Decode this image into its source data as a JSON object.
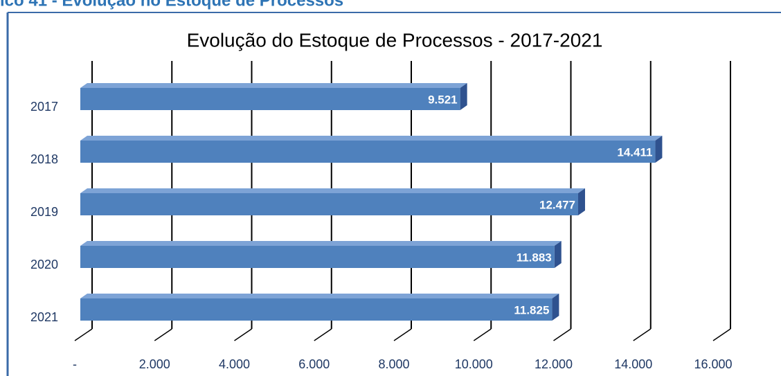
{
  "heading": "ico 41 - Evolução no Estoque de Processos",
  "chart_data": {
    "type": "bar",
    "orientation": "horizontal",
    "title": "Evolução do Estoque de Processos - 2017-2021",
    "categories": [
      "2017",
      "2018",
      "2019",
      "2020",
      "2021"
    ],
    "values": [
      9521,
      14411,
      12477,
      11883,
      11825
    ],
    "value_labels": [
      "9.521",
      "14.411",
      "12.477",
      "11.883",
      "11.825"
    ],
    "color": "#4f81bd",
    "xlim": [
      0,
      16000
    ],
    "xticks": [
      {
        "value": 0,
        "label": "-"
      },
      {
        "value": 2000,
        "label": "2.000"
      },
      {
        "value": 4000,
        "label": "4.000"
      },
      {
        "value": 6000,
        "label": "6.000"
      },
      {
        "value": 8000,
        "label": "8.000"
      },
      {
        "value": 10000,
        "label": "10.000"
      },
      {
        "value": 12000,
        "label": "12.000"
      },
      {
        "value": 14000,
        "label": "14.000"
      },
      {
        "value": 16000,
        "label": "16.000"
      }
    ],
    "grid": true
  }
}
